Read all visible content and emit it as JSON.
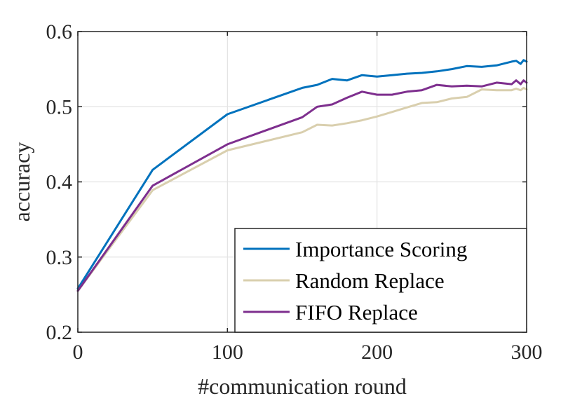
{
  "chart_data": {
    "type": "line",
    "title": "",
    "xlabel": "#communication round",
    "ylabel": "accuracy",
    "xlim": [
      0,
      300
    ],
    "ylim": [
      0.2,
      0.6
    ],
    "xticks": [
      0,
      100,
      200,
      300
    ],
    "xtick_labels": [
      "0",
      "100",
      "200",
      "300"
    ],
    "yticks": [
      0.2,
      0.3,
      0.4,
      0.5,
      0.6
    ],
    "ytick_labels": [
      "0.2",
      "0.3",
      "0.4",
      "0.5",
      "0.6"
    ],
    "grid": true,
    "legend_position": "bottom-right",
    "series": [
      {
        "name": "Importance Scoring",
        "color": "#0072BD",
        "x": [
          0,
          50,
          100,
          150,
          160,
          170,
          180,
          190,
          200,
          210,
          220,
          230,
          240,
          250,
          260,
          270,
          280,
          290,
          293,
          296,
          298,
          300
        ],
        "y": [
          0.258,
          0.416,
          0.49,
          0.525,
          0.529,
          0.537,
          0.535,
          0.542,
          0.54,
          0.542,
          0.544,
          0.545,
          0.547,
          0.55,
          0.554,
          0.553,
          0.555,
          0.56,
          0.561,
          0.557,
          0.562,
          0.56
        ]
      },
      {
        "name": "Random Replace",
        "color": "#D9CFAE",
        "x": [
          0,
          50,
          100,
          150,
          160,
          170,
          180,
          190,
          200,
          210,
          220,
          230,
          240,
          250,
          260,
          270,
          280,
          290,
          293,
          296,
          298,
          300
        ],
        "y": [
          0.255,
          0.389,
          0.442,
          0.466,
          0.476,
          0.475,
          0.478,
          0.482,
          0.487,
          0.493,
          0.499,
          0.505,
          0.506,
          0.511,
          0.513,
          0.523,
          0.522,
          0.522,
          0.524,
          0.522,
          0.525,
          0.523
        ]
      },
      {
        "name": "FIFO Replace",
        "color": "#7E2F8E",
        "x": [
          0,
          50,
          100,
          150,
          160,
          170,
          180,
          190,
          200,
          210,
          220,
          230,
          240,
          250,
          260,
          270,
          280,
          290,
          293,
          296,
          298,
          300
        ],
        "y": [
          0.255,
          0.395,
          0.45,
          0.486,
          0.5,
          0.503,
          0.512,
          0.52,
          0.516,
          0.516,
          0.52,
          0.522,
          0.529,
          0.527,
          0.528,
          0.527,
          0.532,
          0.53,
          0.535,
          0.53,
          0.535,
          0.532
        ]
      }
    ]
  }
}
